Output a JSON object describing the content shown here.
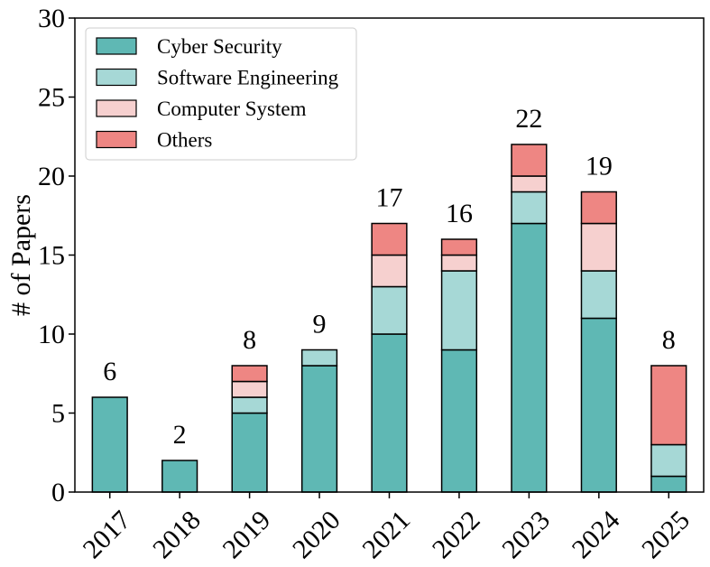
{
  "chart_data": {
    "type": "bar",
    "stacked": true,
    "title": "",
    "xlabel": "",
    "ylabel": "# of Papers",
    "ylim": [
      0,
      30
    ],
    "yticks": [
      0,
      5,
      10,
      15,
      20,
      25,
      30
    ],
    "grid": false,
    "legend_position": "top-left",
    "categories": [
      "2017",
      "2018",
      "2019",
      "2020",
      "2021",
      "2022",
      "2023",
      "2024",
      "2025"
    ],
    "series": [
      {
        "name": "Cyber Security",
        "color": "#5fb8b4",
        "values": [
          6,
          2,
          5,
          8,
          10,
          9,
          17,
          11,
          1
        ]
      },
      {
        "name": "Software Engineering",
        "color": "#a6d8d6",
        "values": [
          0,
          0,
          1,
          1,
          3,
          5,
          2,
          3,
          2
        ]
      },
      {
        "name": "Computer System",
        "color": "#f6d0cf",
        "values": [
          0,
          0,
          1,
          0,
          2,
          1,
          1,
          3,
          0
        ]
      },
      {
        "name": "Others",
        "color": "#ee8683",
        "values": [
          0,
          0,
          1,
          0,
          2,
          1,
          2,
          2,
          5
        ]
      }
    ],
    "totals": [
      "6",
      "2",
      "8",
      "9",
      "17",
      "16",
      "22",
      "19",
      "8"
    ]
  }
}
